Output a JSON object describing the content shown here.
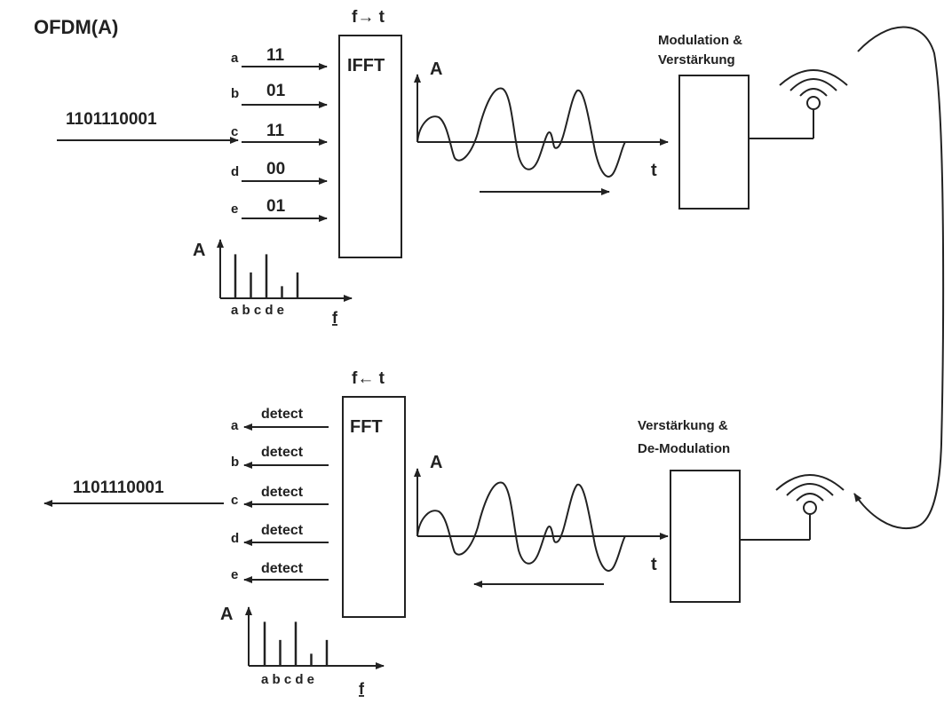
{
  "title": "OFDM(A)",
  "transmitter": {
    "bitstream": "1101110001",
    "transform_label": "f→ t",
    "block_label": "IFFT",
    "carriers": [
      {
        "name": "a",
        "bits": "11",
        "amplitude": 0.8
      },
      {
        "name": "b",
        "bits": "01",
        "amplitude": 0.47
      },
      {
        "name": "c",
        "bits": "11",
        "amplitude": 0.8
      },
      {
        "name": "d",
        "bits": "00",
        "amplitude": 0.22
      },
      {
        "name": "e",
        "bits": "01",
        "amplitude": 0.47
      }
    ],
    "spectrum": {
      "ylabel": "A",
      "xlabel": "f",
      "ticks": "a b c d e"
    },
    "signal": {
      "ylabel": "A",
      "xlabel": "t"
    },
    "stage_label_1": "Modulation &",
    "stage_label_2": "Verstärkung"
  },
  "receiver": {
    "bitstream": "1101110001",
    "transform_label": "f← t",
    "block_label": "FFT",
    "carriers": [
      {
        "name": "a",
        "bits": "detect",
        "amplitude": 0.8
      },
      {
        "name": "b",
        "bits": "detect",
        "amplitude": 0.47
      },
      {
        "name": "c",
        "bits": "detect",
        "amplitude": 0.8
      },
      {
        "name": "d",
        "bits": "detect",
        "amplitude": 0.22
      },
      {
        "name": "e",
        "bits": "detect",
        "amplitude": 0.47
      }
    ],
    "spectrum": {
      "ylabel": "A",
      "xlabel": "f",
      "ticks": "a b c d e"
    },
    "signal": {
      "ylabel": "A",
      "xlabel": "t"
    },
    "stage_label_1": "Verstärkung &",
    "stage_label_2": "De-Modulation"
  },
  "colors": {
    "ink": "#222222",
    "background": "#ffffff"
  }
}
